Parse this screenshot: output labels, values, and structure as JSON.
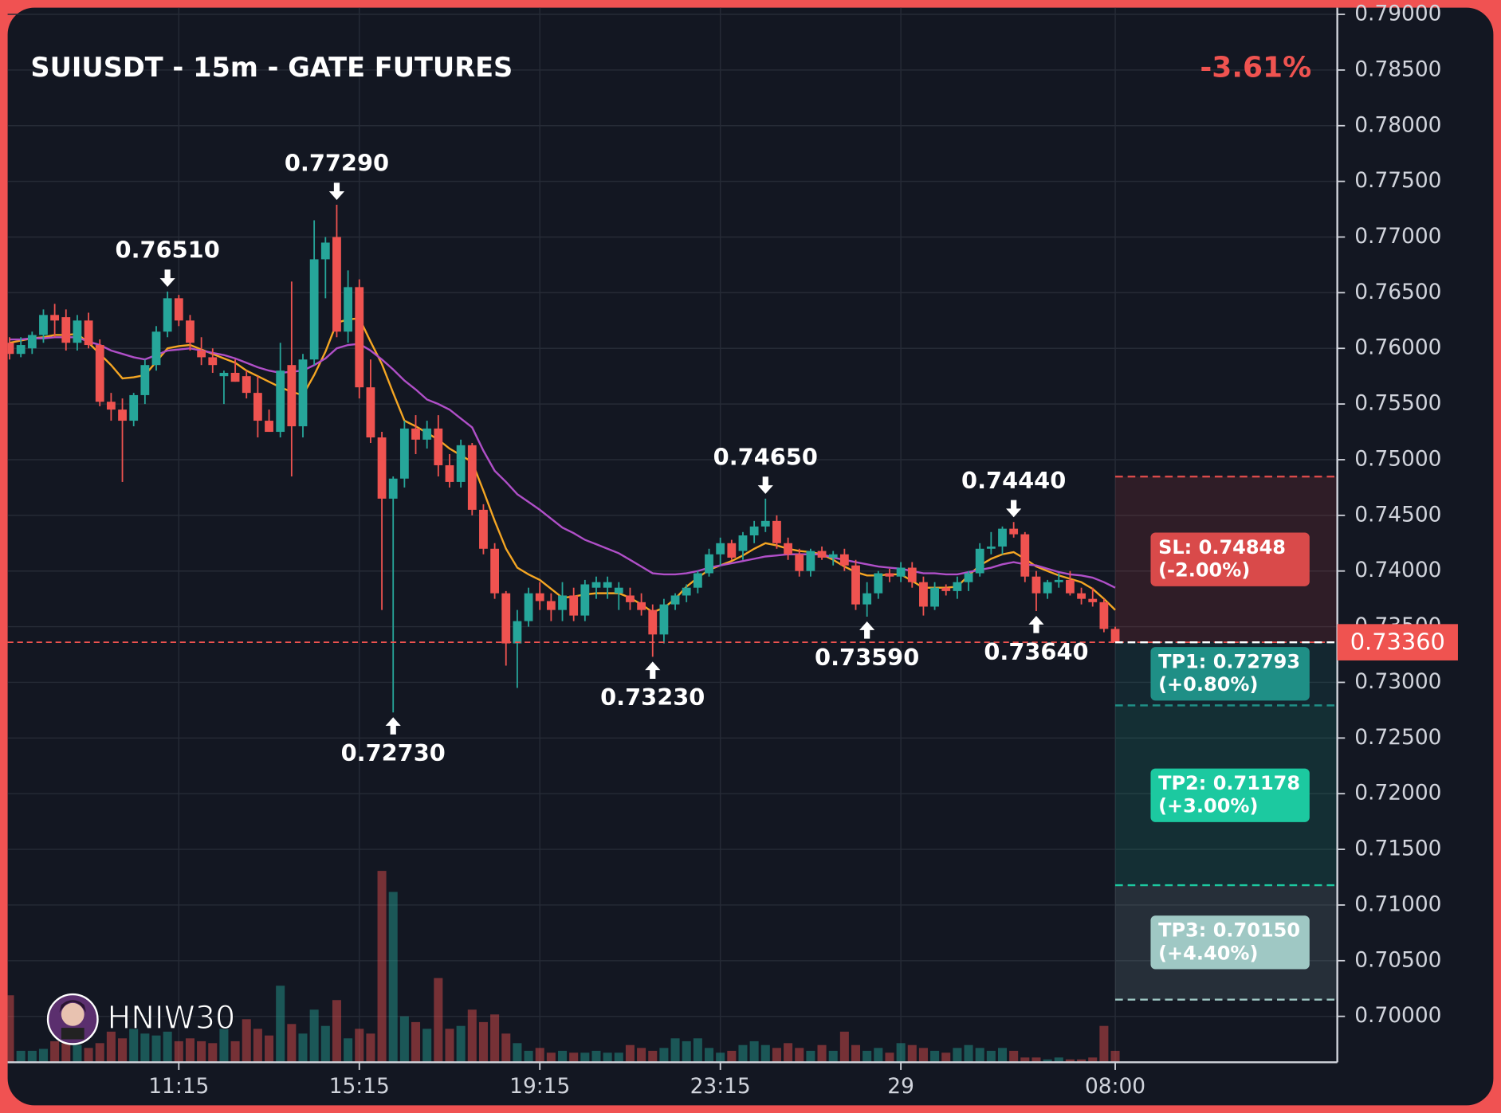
{
  "chart_data": {
    "type": "candlestick",
    "title": "SUIUSDT - 15m - GATE FUTURES",
    "change": "-3.61%",
    "watermark": "HNIW30",
    "up_color": "#26a69a",
    "down_color": "#ef5350",
    "grid": true,
    "categories": [
      null,
      null,
      null,
      null,
      null,
      null,
      null,
      null,
      null,
      null,
      null,
      null,
      null,
      null,
      null,
      "11:15",
      null,
      null,
      null,
      null,
      null,
      null,
      null,
      null,
      null,
      null,
      null,
      null,
      null,
      null,
      null,
      "15:15",
      null,
      null,
      null,
      null,
      null,
      null,
      null,
      null,
      null,
      null,
      null,
      null,
      null,
      null,
      null,
      "19:15",
      null,
      null,
      null,
      null,
      null,
      null,
      null,
      null,
      null,
      null,
      null,
      null,
      null,
      null,
      null,
      "23:15",
      null,
      null,
      null,
      null,
      null,
      null,
      null,
      null,
      null,
      null,
      null,
      null,
      null,
      null,
      null,
      "29",
      null,
      null,
      null,
      null,
      null,
      null,
      null,
      null,
      null,
      null,
      null,
      null,
      null,
      null,
      null,
      null,
      null,
      null,
      "08:00"
    ],
    "open": [
      0.7605,
      0.7595,
      0.76,
      0.7612,
      0.763,
      0.7628,
      0.7605,
      0.7625,
      0.7603,
      0.7552,
      0.7545,
      0.7535,
      0.7558,
      0.7585,
      0.7615,
      0.7645,
      0.7625,
      0.7598,
      0.7592,
      0.7575,
      0.7578,
      0.7575,
      0.756,
      0.7535,
      0.7525,
      0.7585,
      0.753,
      0.759,
      0.768,
      0.77,
      0.7615,
      0.7655,
      0.7565,
      0.752,
      0.7465,
      0.7483,
      0.7528,
      0.7518,
      0.7528,
      0.7495,
      0.748,
      0.7513,
      0.7455,
      0.742,
      0.738,
      0.7335,
      0.7355,
      0.738,
      0.7373,
      0.7365,
      0.7378,
      0.736,
      0.7385,
      0.7385,
      0.738,
      0.7378,
      0.7372,
      0.7365,
      0.7343,
      0.737,
      0.7378,
      0.7385,
      0.7398,
      0.7415,
      0.7425,
      0.7418,
      0.7432,
      0.744,
      0.7445,
      0.7425,
      0.7415,
      0.74,
      0.7418,
      0.7412,
      0.7415,
      0.7405,
      0.737,
      0.738,
      0.7398,
      0.7395,
      0.7403,
      0.739,
      0.7368,
      0.7385,
      0.7382,
      0.739,
      0.7398,
      0.742,
      0.7422,
      0.7438,
      0.7433,
      0.7395,
      0.738,
      0.739,
      0.7392,
      0.738,
      0.7375,
      0.7372,
      0.7348
    ],
    "high": [
      0.761,
      0.761,
      0.7615,
      0.7635,
      0.764,
      0.7635,
      0.763,
      0.7632,
      0.7608,
      0.756,
      0.7555,
      0.756,
      0.759,
      0.762,
      0.7651,
      0.7648,
      0.763,
      0.761,
      0.76,
      0.758,
      0.759,
      0.758,
      0.7575,
      0.7545,
      0.7605,
      0.766,
      0.7595,
      0.7715,
      0.77,
      0.7729,
      0.767,
      0.7662,
      0.759,
      0.7525,
      0.7485,
      0.7535,
      0.754,
      0.7535,
      0.754,
      0.7505,
      0.7518,
      0.7515,
      0.746,
      0.7425,
      0.7382,
      0.7365,
      0.7385,
      0.739,
      0.738,
      0.739,
      0.7385,
      0.7392,
      0.7395,
      0.7395,
      0.739,
      0.7385,
      0.738,
      0.737,
      0.7375,
      0.738,
      0.7388,
      0.74,
      0.742,
      0.743,
      0.7428,
      0.7435,
      0.7445,
      0.7465,
      0.745,
      0.743,
      0.742,
      0.742,
      0.7422,
      0.7418,
      0.742,
      0.741,
      0.739,
      0.74,
      0.7402,
      0.7408,
      0.7408,
      0.7395,
      0.739,
      0.7388,
      0.7395,
      0.74,
      0.7425,
      0.7435,
      0.744,
      0.7444,
      0.7435,
      0.74,
      0.7392,
      0.7398,
      0.74,
      0.7385,
      0.7385,
      0.7375,
      0.735
    ],
    "low": [
      0.759,
      0.7592,
      0.7595,
      0.7605,
      0.761,
      0.7598,
      0.7598,
      0.76,
      0.7548,
      0.7535,
      0.748,
      0.753,
      0.755,
      0.758,
      0.761,
      0.762,
      0.7598,
      0.7585,
      0.7578,
      0.755,
      0.757,
      0.7555,
      0.752,
      0.7525,
      0.752,
      0.7485,
      0.752,
      0.7585,
      0.7645,
      0.761,
      0.7605,
      0.7555,
      0.7515,
      0.7365,
      0.7273,
      0.7475,
      0.7505,
      0.751,
      0.7485,
      0.7475,
      0.7475,
      0.745,
      0.7415,
      0.7375,
      0.7315,
      0.7295,
      0.735,
      0.7365,
      0.7355,
      0.7355,
      0.7355,
      0.7355,
      0.7375,
      0.7375,
      0.7365,
      0.7365,
      0.736,
      0.7323,
      0.7335,
      0.7365,
      0.7372,
      0.738,
      0.7395,
      0.7405,
      0.741,
      0.741,
      0.7425,
      0.7435,
      0.742,
      0.741,
      0.7395,
      0.7395,
      0.741,
      0.7405,
      0.74,
      0.7365,
      0.7359,
      0.7375,
      0.739,
      0.739,
      0.7385,
      0.736,
      0.7365,
      0.7378,
      0.7375,
      0.7382,
      0.7395,
      0.7415,
      0.7415,
      0.743,
      0.739,
      0.7364,
      0.7375,
      0.7385,
      0.7378,
      0.737,
      0.7368,
      0.7345,
      0.7336
    ],
    "close": [
      0.7595,
      0.7603,
      0.7612,
      0.763,
      0.7625,
      0.7605,
      0.7625,
      0.7603,
      0.7552,
      0.7545,
      0.7535,
      0.7558,
      0.7585,
      0.7615,
      0.7645,
      0.7625,
      0.7605,
      0.7592,
      0.7585,
      0.7578,
      0.757,
      0.756,
      0.7535,
      0.7525,
      0.758,
      0.753,
      0.759,
      0.768,
      0.7695,
      0.7615,
      0.7655,
      0.7565,
      0.752,
      0.7465,
      0.7483,
      0.7528,
      0.7518,
      0.7528,
      0.7495,
      0.748,
      0.7513,
      0.7455,
      0.742,
      0.738,
      0.7335,
      0.7355,
      0.738,
      0.7373,
      0.7365,
      0.7378,
      0.736,
      0.7388,
      0.739,
      0.739,
      0.7385,
      0.7372,
      0.7365,
      0.7343,
      0.737,
      0.7378,
      0.7385,
      0.7398,
      0.7415,
      0.7425,
      0.7412,
      0.7432,
      0.744,
      0.7445,
      0.7425,
      0.7415,
      0.74,
      0.7418,
      0.7412,
      0.7415,
      0.7405,
      0.737,
      0.738,
      0.7398,
      0.7395,
      0.7403,
      0.739,
      0.7368,
      0.7385,
      0.7382,
      0.739,
      0.7398,
      0.742,
      0.7422,
      0.7438,
      0.7433,
      0.7395,
      0.738,
      0.739,
      0.7392,
      0.738,
      0.7375,
      0.7372,
      0.7348,
      0.7336
    ],
    "volume": [
      70,
      12,
      12,
      14,
      22,
      20,
      18,
      15,
      20,
      32,
      25,
      35,
      30,
      28,
      32,
      22,
      25,
      22,
      20,
      35,
      22,
      45,
      35,
      28,
      80,
      40,
      30,
      55,
      38,
      65,
      25,
      35,
      30,
      200,
      178,
      48,
      42,
      35,
      88,
      35,
      38,
      55,
      42,
      50,
      30,
      20,
      12,
      15,
      10,
      12,
      10,
      10,
      12,
      10,
      10,
      18,
      15,
      12,
      15,
      25,
      22,
      25,
      15,
      10,
      12,
      18,
      22,
      18,
      15,
      20,
      15,
      12,
      18,
      12,
      32,
      18,
      12,
      15,
      10,
      20,
      18,
      15,
      12,
      10,
      15,
      18,
      15,
      12,
      15,
      12,
      5,
      5,
      3,
      5,
      3,
      3,
      5,
      38,
      12
    ],
    "moving_averages": [
      {
        "color": "#f5a623",
        "values": [
          0.7605,
          0.7607,
          0.7609,
          0.761,
          0.7612,
          0.7612,
          0.7613,
          0.7605,
          0.7595,
          0.7585,
          0.7573,
          0.7574,
          0.7576,
          0.7588,
          0.76,
          0.7602,
          0.7603,
          0.7599,
          0.7595,
          0.7591,
          0.7587,
          0.758,
          0.7575,
          0.757,
          0.7565,
          0.7561,
          0.7558,
          0.7576,
          0.7597,
          0.7623,
          0.7626,
          0.7627,
          0.7606,
          0.7586,
          0.756,
          0.7535,
          0.753,
          0.7524,
          0.7518,
          0.751,
          0.7504,
          0.7498,
          0.7472,
          0.7445,
          0.742,
          0.7403,
          0.7397,
          0.7392,
          0.7384,
          0.7376,
          0.7377,
          0.7379,
          0.738,
          0.738,
          0.738,
          0.7376,
          0.737,
          0.7363,
          0.7367,
          0.7375,
          0.7386,
          0.7394,
          0.7401,
          0.7405,
          0.7409,
          0.7414,
          0.742,
          0.7425,
          0.7423,
          0.742,
          0.7418,
          0.7417,
          0.7415,
          0.741,
          0.7404,
          0.7399,
          0.7396,
          0.7396,
          0.7397,
          0.7397,
          0.7391,
          0.7385,
          0.7385,
          0.7385,
          0.7386,
          0.7396,
          0.7405,
          0.7411,
          0.7415,
          0.7417,
          0.7411,
          0.7404,
          0.74,
          0.7396,
          0.7393,
          0.739,
          0.7384,
          0.7375,
          0.7365
        ]
      },
      {
        "color": "#b04fc8",
        "values": [
          0.7608,
          0.7608,
          0.7609,
          0.7609,
          0.761,
          0.761,
          0.761,
          0.7606,
          0.7603,
          0.7598,
          0.7595,
          0.7592,
          0.759,
          0.7594,
          0.7598,
          0.7599,
          0.76,
          0.7598,
          0.7596,
          0.7594,
          0.7591,
          0.7587,
          0.7583,
          0.758,
          0.7578,
          0.7579,
          0.758,
          0.7585,
          0.7591,
          0.76,
          0.7603,
          0.7604,
          0.7598,
          0.759,
          0.7581,
          0.7571,
          0.7563,
          0.7554,
          0.755,
          0.7545,
          0.7537,
          0.7529,
          0.7508,
          0.749,
          0.748,
          0.7469,
          0.7462,
          0.7455,
          0.7447,
          0.7439,
          0.7434,
          0.7428,
          0.7424,
          0.742,
          0.7416,
          0.741,
          0.7404,
          0.7398,
          0.7397,
          0.7397,
          0.7398,
          0.74,
          0.7403,
          0.7405,
          0.7407,
          0.7409,
          0.7411,
          0.7413,
          0.7414,
          0.7415,
          0.7415,
          0.7415,
          0.7415,
          0.7412,
          0.741,
          0.7408,
          0.7406,
          0.7404,
          0.7403,
          0.7402,
          0.74,
          0.7398,
          0.7398,
          0.7397,
          0.7397,
          0.7399,
          0.7401,
          0.7403,
          0.7406,
          0.7408,
          0.7406,
          0.7405,
          0.7402,
          0.7399,
          0.7397,
          0.7396,
          0.7394,
          0.739,
          0.7385
        ]
      }
    ],
    "annotations": [
      {
        "index": 14,
        "value": 0.7651,
        "label": "0.76510",
        "position": "above"
      },
      {
        "index": 29,
        "value": 0.7729,
        "label": "0.77290",
        "position": "above"
      },
      {
        "index": 34,
        "value": 0.7273,
        "label": "0.72730",
        "position": "below"
      },
      {
        "index": 57,
        "value": 0.7323,
        "label": "0.73230",
        "position": "below"
      },
      {
        "index": 67,
        "value": 0.7465,
        "label": "0.74650",
        "position": "above"
      },
      {
        "index": 76,
        "value": 0.7359,
        "label": "0.73590",
        "position": "below"
      },
      {
        "index": 89,
        "value": 0.7444,
        "label": "0.74440",
        "position": "above"
      },
      {
        "index": 91,
        "value": 0.7364,
        "label": "0.73640",
        "position": "below"
      }
    ],
    "entry": {
      "value": 0.7336,
      "label": "0.73360",
      "color": "#ef5350"
    },
    "levels": [
      {
        "value": 0.74848,
        "label": "SL: 0.74848",
        "sublabel": "(-2.00%)",
        "color": "#d94a4a"
      },
      {
        "value": 0.72793,
        "label": "TP1: 0.72793",
        "sublabel": "(+0.80%)",
        "color": "#1f8f86"
      },
      {
        "value": 0.71178,
        "label": "TP2: 0.71178",
        "sublabel": "(+3.00%)",
        "color": "#1cc9a0"
      },
      {
        "value": 0.7015,
        "label": "TP3: 0.70150",
        "sublabel": "(+4.40%)",
        "color": "#9fc8c4"
      }
    ],
    "ylim": [
      0.7,
      0.79
    ],
    "yticks": [
      {
        "value": 0.79,
        "label": "0.79000"
      },
      {
        "value": 0.785,
        "label": "0.78500"
      },
      {
        "value": 0.78,
        "label": "0.78000"
      },
      {
        "value": 0.775,
        "label": "0.77500"
      },
      {
        "value": 0.77,
        "label": "0.77000"
      },
      {
        "value": 0.765,
        "label": "0.76500"
      },
      {
        "value": 0.76,
        "label": "0.76000"
      },
      {
        "value": 0.755,
        "label": "0.75500"
      },
      {
        "value": 0.75,
        "label": "0.75000"
      },
      {
        "value": 0.745,
        "label": "0.74500"
      },
      {
        "value": 0.74,
        "label": "0.74000"
      },
      {
        "value": 0.735,
        "label": "0.73500"
      },
      {
        "value": 0.73,
        "label": "0.73000"
      },
      {
        "value": 0.725,
        "label": "0.72500"
      },
      {
        "value": 0.72,
        "label": "0.72000"
      },
      {
        "value": 0.715,
        "label": "0.71500"
      },
      {
        "value": 0.71,
        "label": "0.71000"
      },
      {
        "value": 0.705,
        "label": "0.70500"
      },
      {
        "value": 0.7,
        "label": "0.70000"
      }
    ]
  }
}
